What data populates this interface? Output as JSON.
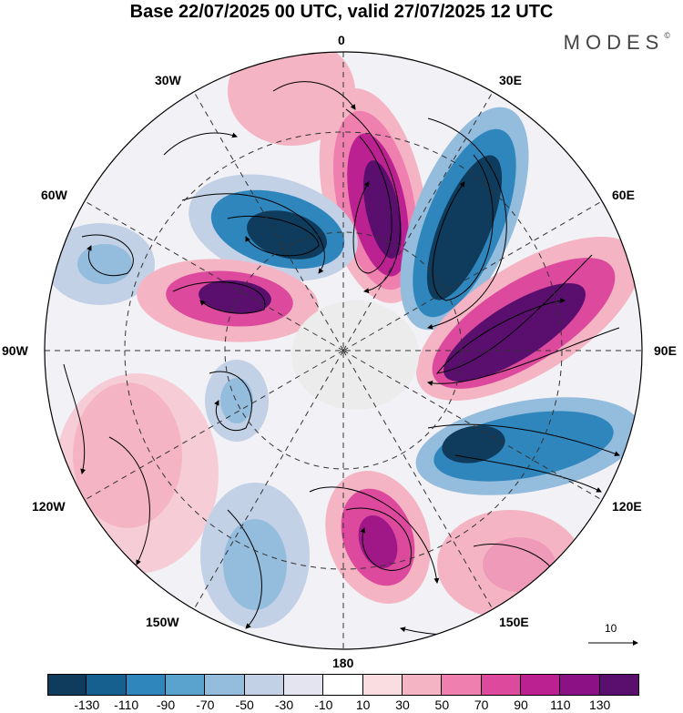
{
  "title": "Base 22/07/2025 00 UTC, valid 27/07/2025 12 UTC",
  "brand": "MODES",
  "brand_mark": "©",
  "longitude_labels": {
    "top": "0",
    "w30": "30W",
    "e30": "30E",
    "w60": "60W",
    "e60": "60E",
    "w90": "90W",
    "e90": "90E",
    "w120": "120W",
    "e120": "120E",
    "w150": "150W",
    "e150": "150E",
    "bottom": "180"
  },
  "reference_vector": "10",
  "colorbar": {
    "colors": [
      "#0f3b5c",
      "#16608f",
      "#2f86bd",
      "#5aa3cf",
      "#94bcdd",
      "#c3d1e6",
      "#e4e3f0",
      "#ffffff",
      "#f9dde0",
      "#f4b4c3",
      "#ee7fae",
      "#dd4a9d",
      "#bb2190",
      "#8c1185",
      "#5a0f6e"
    ],
    "ticks": [
      "-130",
      "-110",
      "-90",
      "-70",
      "-50",
      "-30",
      "-10",
      "10",
      "30",
      "50",
      "70",
      "90",
      "110",
      "130"
    ]
  }
}
